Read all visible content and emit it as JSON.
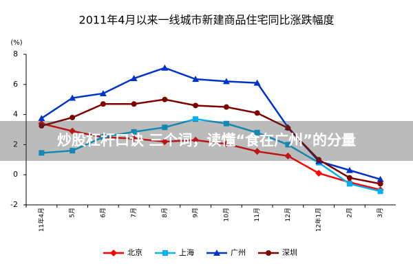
{
  "chart_data": {
    "type": "line",
    "title": "2011年4月以来一线城市新建商品住宅同比涨跌幅度",
    "y_label": "(%)",
    "annotation": "炒股杠杆口诀 三个词，读懂“食在广州”的分量",
    "categories": [
      "11年4月",
      "5月",
      "6月",
      "7月",
      "8月",
      "9月",
      "10月",
      "11月",
      "12月",
      "12年1月",
      "2月",
      "3月"
    ],
    "series": [
      {
        "name": "北京",
        "color": "#ff0000",
        "marker": "diamond",
        "values": [
          3.4,
          2.9,
          2.5,
          2.4,
          2.2,
          2.3,
          2.05,
          1.55,
          1.25,
          0.1,
          -0.5,
          -1.0
        ]
      },
      {
        "name": "上海",
        "color": "#00b0f0",
        "marker": "square",
        "values": [
          1.45,
          1.6,
          2.5,
          2.85,
          3.15,
          3.7,
          3.4,
          2.8,
          2.0,
          0.8,
          -0.6,
          -1.1
        ]
      },
      {
        "name": "广州",
        "color": "#0033cc",
        "marker": "triangle",
        "values": [
          3.75,
          5.1,
          5.4,
          6.4,
          7.1,
          6.35,
          6.2,
          6.1,
          3.15,
          0.9,
          0.3,
          -0.3
        ]
      },
      {
        "name": "深圳",
        "color": "#800000",
        "marker": "circle",
        "values": [
          3.25,
          3.8,
          4.7,
          4.7,
          5.0,
          4.6,
          4.5,
          4.1,
          3.1,
          1.0,
          -0.2,
          -0.6
        ]
      }
    ],
    "ylim": [
      -2,
      8
    ],
    "yticks": [
      -2,
      0,
      2,
      4,
      6,
      8
    ],
    "grid": false,
    "legend": "bottom"
  }
}
